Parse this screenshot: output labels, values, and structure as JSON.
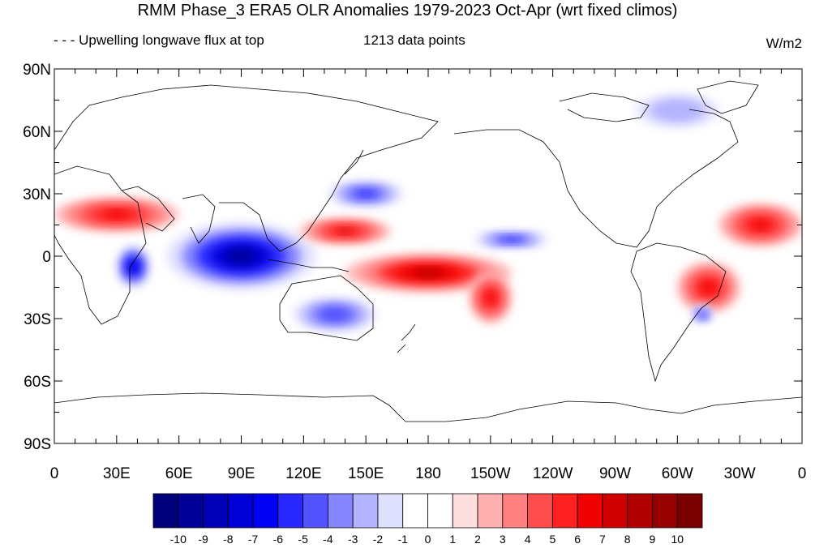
{
  "header": {
    "title": "RMM Phase_3 ERA5 OLR Anomalies 1979-2023 Oct-Apr (wrt fixed climos)",
    "left_label": "- - - Upwelling longwave flux at top",
    "center_label": "1213 data points",
    "right_label": "W/m2"
  },
  "map": {
    "lat_ticks": [
      "90N",
      "60N",
      "30N",
      "0",
      "30S",
      "60S",
      "90S"
    ],
    "lon_ticks": [
      "0",
      "30E",
      "60E",
      "90E",
      "120E",
      "150E",
      "180",
      "150W",
      "120W",
      "90W",
      "60W",
      "30W",
      "0"
    ]
  },
  "colorbar": {
    "labels": [
      "-10",
      "-9",
      "-8",
      "-7",
      "-6",
      "-5",
      "-4",
      "-3",
      "-2",
      "-1",
      "0",
      "1",
      "2",
      "3",
      "4",
      "5",
      "6",
      "7",
      "8",
      "9",
      "10"
    ],
    "colors": [
      "#00007a",
      "#000099",
      "#0000b8",
      "#0000d6",
      "#0000f5",
      "#2929ff",
      "#5252ff",
      "#8585ff",
      "#b3b3ff",
      "#e0e0ff",
      "#ffffff",
      "#ffffff",
      "#ffdede",
      "#ffb0b0",
      "#ff8080",
      "#ff4d4d",
      "#ff2020",
      "#f00000",
      "#d00000",
      "#b00000",
      "#960000",
      "#7a0000"
    ]
  },
  "anomaly_regions": [
    {
      "name": "indian-ocean-negative",
      "lon": 90,
      "lat": 0,
      "rx": 36,
      "ry": 16,
      "value": -10
    },
    {
      "name": "africa-east-negative",
      "lon": 38,
      "lat": -5,
      "rx": 8,
      "ry": 10,
      "value": -8
    },
    {
      "name": "pacific-central-positive",
      "lon": 180,
      "lat": -8,
      "rx": 40,
      "ry": 9,
      "value": 8
    },
    {
      "name": "spcz-positive",
      "lon": -150,
      "lat": -20,
      "rx": 10,
      "ry": 12,
      "value": 6
    },
    {
      "name": "arabia-positive",
      "lon": 30,
      "lat": 20,
      "rx": 30,
      "ry": 8,
      "value": 6
    },
    {
      "name": "west-pacific-north-positive",
      "lon": 140,
      "lat": 12,
      "rx": 22,
      "ry": 6,
      "value": 7
    },
    {
      "name": "japan-negative",
      "lon": 150,
      "lat": 30,
      "rx": 18,
      "ry": 6,
      "value": -6
    },
    {
      "name": "north-pacific-negative",
      "lon": -140,
      "lat": 8,
      "rx": 18,
      "ry": 4,
      "value": -6
    },
    {
      "name": "australia-negative",
      "lon": 135,
      "lat": -28,
      "rx": 20,
      "ry": 8,
      "value": -5
    },
    {
      "name": "brazil-positive",
      "lon": -45,
      "lat": -15,
      "rx": 15,
      "ry": 12,
      "value": 6
    },
    {
      "name": "atlantic-north-positive",
      "lon": -20,
      "lat": 15,
      "rx": 20,
      "ry": 10,
      "value": 6
    },
    {
      "name": "south-atlantic-negative",
      "lon": -48,
      "lat": -28,
      "rx": 5,
      "ry": 4,
      "value": -5
    },
    {
      "name": "arctic-negative",
      "lon": -60,
      "lat": 70,
      "rx": 20,
      "ry": 8,
      "value": -3
    }
  ]
}
